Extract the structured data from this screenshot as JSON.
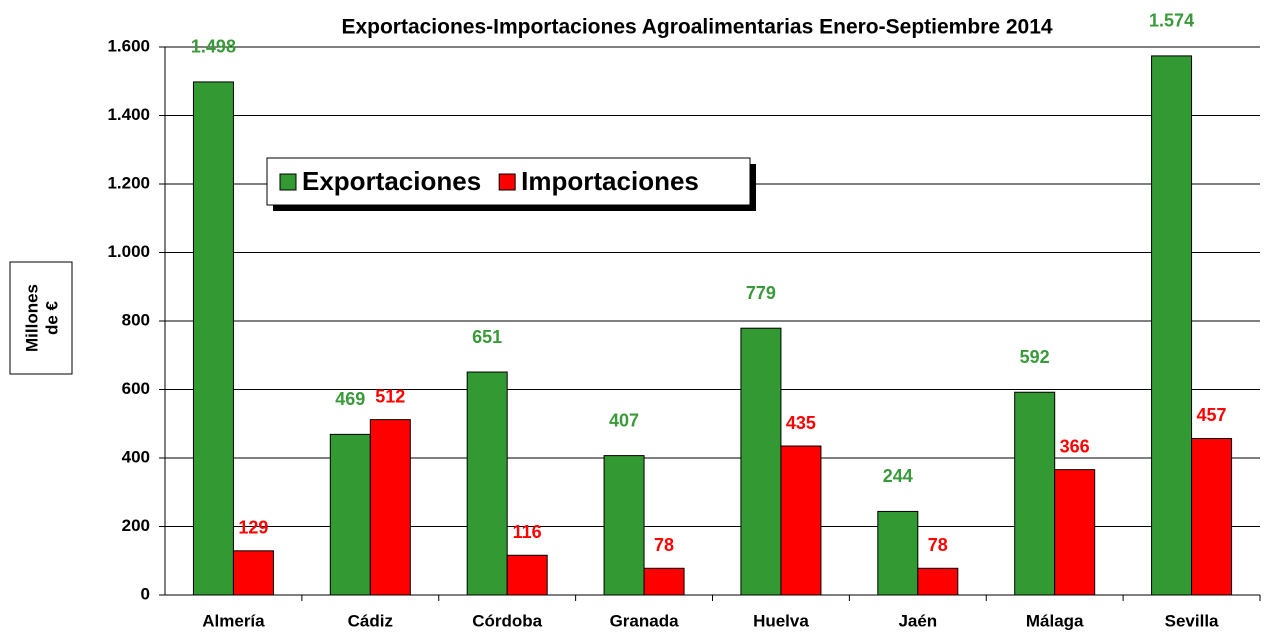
{
  "chart_data": {
    "type": "bar",
    "title": "Exportaciones-Importaciones Agroalimentarias Enero-Septiembre 2014",
    "ylabel": [
      "Millones",
      "de €"
    ],
    "categories": [
      "Almería",
      "Cádiz",
      "Córdoba",
      "Granada",
      "Huelva",
      "Jaén",
      "Málaga",
      "Sevilla"
    ],
    "series": [
      {
        "name": "Exportaciones",
        "color": "#339933",
        "label_color": "#3a9a3a",
        "values": [
          1498,
          469,
          651,
          407,
          779,
          244,
          592,
          1574
        ],
        "value_labels": [
          "1.498",
          "469",
          "651",
          "407",
          "779",
          "244",
          "592",
          "1.574"
        ]
      },
      {
        "name": "Importaciones",
        "color": "#ff0000",
        "label_color": "#ff0000",
        "values": [
          129,
          512,
          116,
          78,
          435,
          78,
          366,
          457
        ],
        "value_labels": [
          "129",
          "512",
          "116",
          "78",
          "435",
          "78",
          "366",
          "457"
        ]
      }
    ],
    "ylim": [
      0,
      1600
    ],
    "yticks": [
      0,
      200,
      400,
      600,
      800,
      {
        "value": 1000,
        "label": "1.000"
      },
      {
        "value": 1200,
        "label": "1.200"
      },
      {
        "value": 1400,
        "label": "1.400"
      },
      {
        "value": 1600,
        "label": "1.600"
      }
    ],
    "grid": true
  }
}
